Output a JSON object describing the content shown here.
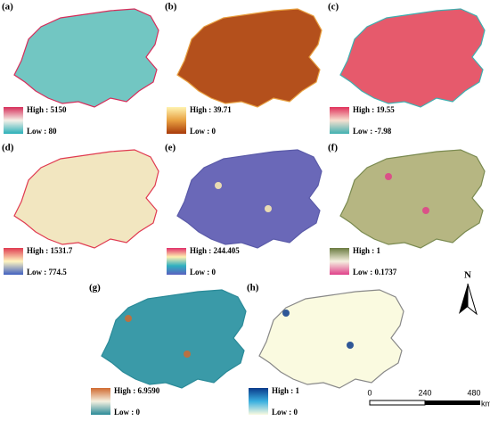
{
  "panels": [
    {
      "label": "(a)",
      "high": "High : 5150",
      "low": "Low : 80"
    },
    {
      "label": "(b)",
      "high": "High : 39.71",
      "low": "Low : 0"
    },
    {
      "label": "(c)",
      "high": "High : 19.55",
      "low": "Low : -7.98"
    },
    {
      "label": "(d)",
      "high": "High : 1531.7",
      "low": "Low : 774.5"
    },
    {
      "label": "(e)",
      "high": "High : 244.405",
      "low": "Low : 0"
    },
    {
      "label": "(f)",
      "high": "High : 1",
      "low": "Low : 0.1737"
    },
    {
      "label": "(g)",
      "high": "High : 6.9590",
      "low": "Low : 0"
    },
    {
      "label": "(h)",
      "high": "High : 1",
      "low": "Low : 0"
    }
  ],
  "north": "N",
  "scale_bar": {
    "ticks": [
      "0",
      "240",
      "480"
    ],
    "unit": "km"
  }
}
